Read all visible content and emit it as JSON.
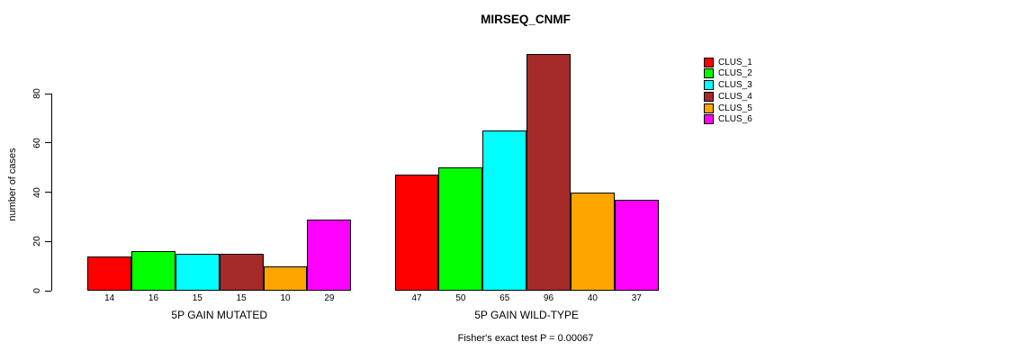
{
  "title": "MIRSEQ_CNMF",
  "y_axis": {
    "label": "number of cases"
  },
  "footer": "Fisher's exact test P = 0.00067",
  "legend": {
    "items": [
      {
        "label": "CLUS_1",
        "color": "#FF0000"
      },
      {
        "label": "CLUS_2",
        "color": "#00FF00"
      },
      {
        "label": "CLUS_3",
        "color": "#00FFFF"
      },
      {
        "label": "CLUS_4",
        "color": "#A52A2A"
      },
      {
        "label": "CLUS_5",
        "color": "#FFA500"
      },
      {
        "label": "CLUS_6",
        "color": "#FF00FF"
      }
    ]
  },
  "chart_data": {
    "type": "bar",
    "title": "MIRSEQ_CNMF",
    "xlabel": "",
    "ylabel": "number of cases",
    "categories": [
      "5P GAIN MUTATED",
      "5P GAIN WILD-TYPE"
    ],
    "series": [
      {
        "name": "CLUS_1",
        "color": "#FF0000",
        "values": [
          14,
          47
        ]
      },
      {
        "name": "CLUS_2",
        "color": "#00FF00",
        "values": [
          16,
          50
        ]
      },
      {
        "name": "CLUS_3",
        "color": "#00FFFF",
        "values": [
          15,
          65
        ]
      },
      {
        "name": "CLUS_4",
        "color": "#A52A2A",
        "values": [
          15,
          96
        ]
      },
      {
        "name": "CLUS_5",
        "color": "#FFA500",
        "values": [
          10,
          40
        ]
      },
      {
        "name": "CLUS_6",
        "color": "#FF00FF",
        "values": [
          29,
          37
        ]
      }
    ],
    "bar_value_labels": [
      [
        14,
        16,
        15,
        15,
        10,
        29
      ],
      [
        47,
        50,
        65,
        96,
        40,
        37
      ]
    ],
    "yticks": [
      0,
      20,
      40,
      60,
      80
    ],
    "ylim": [
      0,
      80
    ],
    "grid": false,
    "legend_position": "top-right",
    "annotation": "Fisher's exact test P = 0.00067"
  }
}
